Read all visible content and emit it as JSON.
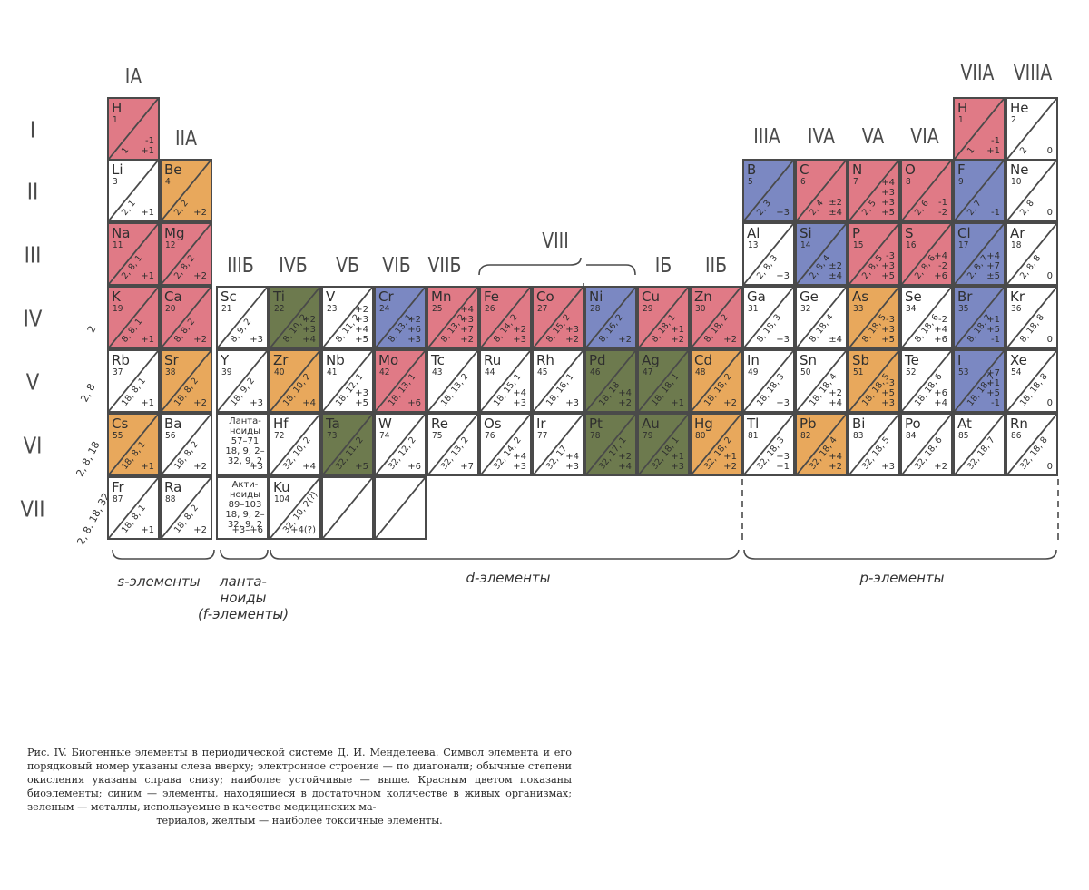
{
  "groups": {
    "IA": "IA",
    "IIA": "IIA",
    "IIIB": "IIIБ",
    "IVB": "IVБ",
    "VB": "VБ",
    "VIB": "VIБ",
    "VIIB": "VIIБ",
    "VIII": "VIII",
    "IB": "IБ",
    "IIB": "IIБ",
    "IIIA": "IIIA",
    "IVA": "IVA",
    "VA": "VA",
    "VIA": "VIA",
    "VIIA": "VIIA",
    "VIIIA": "VIIIA"
  },
  "periods": [
    "I",
    "II",
    "III",
    "IV",
    "V",
    "VI",
    "VII"
  ],
  "shell_labels": [
    "2",
    "2, 8",
    "2, 8, 18",
    "2, 8, 18, 32"
  ],
  "colors": {
    "red": "#e07a86",
    "blue": "#7b88c2",
    "green": "#6d7a4e",
    "yellow": "#e8a85c",
    "white": "#ffffff"
  },
  "elements": [
    {
      "sym": "H",
      "num": "1",
      "shells": "1",
      "ox": "-1\n+1",
      "color": "red"
    },
    {
      "sym": "H",
      "num": "1",
      "shells": "1",
      "ox": "-1\n+1",
      "color": "red"
    },
    {
      "sym": "He",
      "num": "2",
      "shells": "2",
      "ox": "0",
      "color": "white"
    },
    {
      "sym": "Li",
      "num": "3",
      "shells": "2, 1",
      "ox": "+1",
      "color": "white"
    },
    {
      "sym": "Be",
      "num": "4",
      "shells": "2, 2",
      "ox": "+2",
      "color": "yellow"
    },
    {
      "sym": "B",
      "num": "5",
      "shells": "2, 3",
      "ox": "+3",
      "color": "blue"
    },
    {
      "sym": "C",
      "num": "6",
      "shells": "2, 4",
      "ox": "±2\n±4",
      "color": "red"
    },
    {
      "sym": "N",
      "num": "7",
      "shells": "2, 5",
      "ox": "+4\n+3\n+3\n+5",
      "color": "red"
    },
    {
      "sym": "O",
      "num": "8",
      "shells": "2, 6",
      "ox": "-1\n-2",
      "color": "red"
    },
    {
      "sym": "F",
      "num": "9",
      "shells": "2, 7",
      "ox": "-1",
      "color": "blue"
    },
    {
      "sym": "Ne",
      "num": "10",
      "shells": "2, 8",
      "ox": "0",
      "color": "white"
    },
    {
      "sym": "Na",
      "num": "11",
      "shells": "2, 8, 1",
      "ox": "+1",
      "color": "red"
    },
    {
      "sym": "Mg",
      "num": "12",
      "shells": "2, 8, 2",
      "ox": "+2",
      "color": "red"
    },
    {
      "sym": "Al",
      "num": "13",
      "shells": "2, 8, 3",
      "ox": "+3",
      "color": "white"
    },
    {
      "sym": "Si",
      "num": "14",
      "shells": "2, 8, 4",
      "ox": "±2\n±4",
      "color": "blue"
    },
    {
      "sym": "P",
      "num": "15",
      "shells": "2, 8, 5",
      "ox": "-3\n+3\n+5",
      "color": "red"
    },
    {
      "sym": "S",
      "num": "16",
      "shells": "2, 8, 6",
      "ox": "+4\n-2\n+6",
      "color": "red"
    },
    {
      "sym": "Cl",
      "num": "17",
      "shells": "2, 8, 7",
      "ox": "+4\n+7\n±5",
      "color": "blue"
    },
    {
      "sym": "Ar",
      "num": "18",
      "shells": "2, 8, 8",
      "ox": "0",
      "color": "white"
    },
    {
      "sym": "K",
      "num": "19",
      "shells": "8, 8, 1",
      "ox": "+1",
      "color": "red"
    },
    {
      "sym": "Ca",
      "num": "20",
      "shells": "8, 8, 2",
      "ox": "+2",
      "color": "red"
    },
    {
      "sym": "Sc",
      "num": "21",
      "shells": "8, 9, 2",
      "ox": "+3",
      "color": "white"
    },
    {
      "sym": "Ti",
      "num": "22",
      "shells": "8, 10, 2",
      "ox": "+2\n+3\n+4",
      "color": "green"
    },
    {
      "sym": "V",
      "num": "23",
      "shells": "8, 11, 2",
      "ox": "+2\n+3\n+4\n+5",
      "color": "white"
    },
    {
      "sym": "Cr",
      "num": "24",
      "shells": "8, 13, 1",
      "ox": "+2\n+6\n+3",
      "color": "blue"
    },
    {
      "sym": "Mn",
      "num": "25",
      "shells": "8, 13, 2",
      "ox": "+4\n+3\n+7\n+2",
      "color": "red"
    },
    {
      "sym": "Fe",
      "num": "26",
      "shells": "8, 14, 2",
      "ox": "+2\n+3",
      "color": "red"
    },
    {
      "sym": "Co",
      "num": "27",
      "shells": "8, 15, 2",
      "ox": "+3\n+2",
      "color": "red"
    },
    {
      "sym": "Ni",
      "num": "28",
      "shells": "8, 16, 2",
      "ox": "+2",
      "color": "blue"
    },
    {
      "sym": "Cu",
      "num": "29",
      "shells": "8, 18, 1",
      "ox": "+1\n+2",
      "color": "red"
    },
    {
      "sym": "Zn",
      "num": "30",
      "shells": "8, 18, 2",
      "ox": "+2",
      "color": "red"
    },
    {
      "sym": "Ga",
      "num": "31",
      "shells": "8, 18, 3",
      "ox": "+3",
      "color": "white"
    },
    {
      "sym": "Ge",
      "num": "32",
      "shells": "8, 18, 4",
      "ox": "±4",
      "color": "white"
    },
    {
      "sym": "As",
      "num": "33",
      "shells": "8, 18, 5",
      "ox": "-3\n+3\n+5",
      "color": "yellow"
    },
    {
      "sym": "Se",
      "num": "34",
      "shells": "8, 18, 6",
      "ox": "-2\n+4\n+6",
      "color": "white"
    },
    {
      "sym": "Br",
      "num": "35",
      "shells": "8, 18, 7",
      "ox": "+1\n+5\n-1",
      "color": "blue"
    },
    {
      "sym": "Kr",
      "num": "36",
      "shells": "8, 18, 8",
      "ox": "0",
      "color": "white"
    },
    {
      "sym": "Rb",
      "num": "37",
      "shells": "18, 8, 1",
      "ox": "+1",
      "color": "white"
    },
    {
      "sym": "Sr",
      "num": "38",
      "shells": "18, 8, 2",
      "ox": "+2",
      "color": "yellow"
    },
    {
      "sym": "Y",
      "num": "39",
      "shells": "18, 9, 2",
      "ox": "+3",
      "color": "white"
    },
    {
      "sym": "Zr",
      "num": "40",
      "shells": "18, 10, 2",
      "ox": "+4",
      "color": "yellow"
    },
    {
      "sym": "Nb",
      "num": "41",
      "shells": "18, 12, 1",
      "ox": "+3\n+5",
      "color": "white"
    },
    {
      "sym": "Mo",
      "num": "42",
      "shells": "18, 13, 1",
      "ox": "+6",
      "color": "red"
    },
    {
      "sym": "Tc",
      "num": "43",
      "shells": "18, 13, 2",
      "ox": "",
      "color": "white"
    },
    {
      "sym": "Ru",
      "num": "44",
      "shells": "18, 15, 1",
      "ox": "+4\n+3",
      "color": "white"
    },
    {
      "sym": "Rh",
      "num": "45",
      "shells": "18, 16, 1",
      "ox": "+3",
      "color": "white"
    },
    {
      "sym": "Pd",
      "num": "46",
      "shells": "18, 18",
      "ox": "+4\n+2",
      "color": "green"
    },
    {
      "sym": "Ag",
      "num": "47",
      "shells": "18, 18, 1",
      "ox": "+1",
      "color": "green"
    },
    {
      "sym": "Cd",
      "num": "48",
      "shells": "18, 18, 2",
      "ox": "+2",
      "color": "yellow"
    },
    {
      "sym": "In",
      "num": "49",
      "shells": "18, 18, 3",
      "ox": "+3",
      "color": "white"
    },
    {
      "sym": "Sn",
      "num": "50",
      "shells": "18, 18, 4",
      "ox": "+2\n+4",
      "color": "white"
    },
    {
      "sym": "Sb",
      "num": "51",
      "shells": "18, 18, 5",
      "ox": "-3\n+5\n+3",
      "color": "yellow"
    },
    {
      "sym": "Te",
      "num": "52",
      "shells": "18, 18, 6",
      "ox": "+6\n+4",
      "color": "white"
    },
    {
      "sym": "I",
      "num": "53",
      "shells": "18, 18, 7",
      "ox": "+7\n+1\n+5\n-1",
      "color": "blue"
    },
    {
      "sym": "Xe",
      "num": "54",
      "shells": "18, 18, 8",
      "ox": "0",
      "color": "white"
    },
    {
      "sym": "Cs",
      "num": "55",
      "shells": "18, 8, 1",
      "ox": "+1",
      "color": "yellow"
    },
    {
      "sym": "Ba",
      "num": "56",
      "shells": "18, 8, 2",
      "ox": "+2",
      "color": "white"
    },
    {
      "sym": "Hf",
      "num": "72",
      "shells": "32, 10, 2",
      "ox": "+4",
      "color": "white"
    },
    {
      "sym": "Ta",
      "num": "73",
      "shells": "32, 11, 2",
      "ox": "+5",
      "color": "green"
    },
    {
      "sym": "W",
      "num": "74",
      "shells": "32, 12, 2",
      "ox": "+6",
      "color": "white"
    },
    {
      "sym": "Re",
      "num": "75",
      "shells": "32, 13, 2",
      "ox": "+7",
      "color": "white"
    },
    {
      "sym": "Os",
      "num": "76",
      "shells": "32, 14, 2",
      "ox": "+4\n+3",
      "color": "white"
    },
    {
      "sym": "Ir",
      "num": "77",
      "shells": "32, 17",
      "ox": "+4\n+3",
      "color": "white"
    },
    {
      "sym": "Pt",
      "num": "78",
      "shells": "32, 17, 1",
      "ox": "+2\n+4",
      "color": "green"
    },
    {
      "sym": "Au",
      "num": "79",
      "shells": "32, 18, 1",
      "ox": "+1\n+3",
      "color": "green"
    },
    {
      "sym": "Hg",
      "num": "80",
      "shells": "32, 18, 2",
      "ox": "+1\n+2",
      "color": "yellow"
    },
    {
      "sym": "Tl",
      "num": "81",
      "shells": "32, 18, 3",
      "ox": "+3\n+1",
      "color": "white"
    },
    {
      "sym": "Pb",
      "num": "82",
      "shells": "32, 18, 4",
      "ox": "+4\n+2",
      "color": "yellow"
    },
    {
      "sym": "Bi",
      "num": "83",
      "shells": "32, 18, 5",
      "ox": "+3",
      "color": "white"
    },
    {
      "sym": "Po",
      "num": "84",
      "shells": "32, 18, 6",
      "ox": "+2",
      "color": "white"
    },
    {
      "sym": "At",
      "num": "85",
      "shells": "32, 18, 7",
      "ox": "",
      "color": "white"
    },
    {
      "sym": "Rn",
      "num": "86",
      "shells": "32, 18, 8",
      "ox": "0",
      "color": "white"
    },
    {
      "sym": "Fr",
      "num": "87",
      "shells": "18, 8, 1",
      "ox": "+1",
      "color": "white"
    },
    {
      "sym": "Ra",
      "num": "88",
      "shells": "18, 8, 2",
      "ox": "+2",
      "color": "white"
    },
    {
      "sym": "Ku",
      "num": "104",
      "shells": "32, 10, 2(?)",
      "ox": "+4(?)",
      "color": "white"
    }
  ],
  "lanthanides": {
    "text": "Лантa-\nноиды\n57–71\n18, 9, 2–\n32, 9, 2",
    "ox": "+3"
  },
  "actinides": {
    "text": "Акти-\nноиды\n89–103\n18, 9, 2–\n32, 9, 2",
    "ox": "+3–+6"
  },
  "blocks": {
    "s": "s-элементы",
    "f": "ланта-\nноиды\n(f-элементы)",
    "d": "d-элементы",
    "p": "p-элементы"
  },
  "caption": {
    "main": "Рис. IV. Биогенные элементы в периодической системе Д. И. Менделеева. Символ элемента и его порядковый номер указаны слева вверху; электронное строение — по диагонали; обычные степени окисления указаны справа снизу; наиболее устойчивые — выше. Красным цветом показаны биоэлементы; синим — элементы, находящиеся в достаточном количестве в живых организмах; зеленым — металлы, используемые в качестве медицинских ма-",
    "last": "териалов, желтым — наиболее токсичные элементы."
  }
}
